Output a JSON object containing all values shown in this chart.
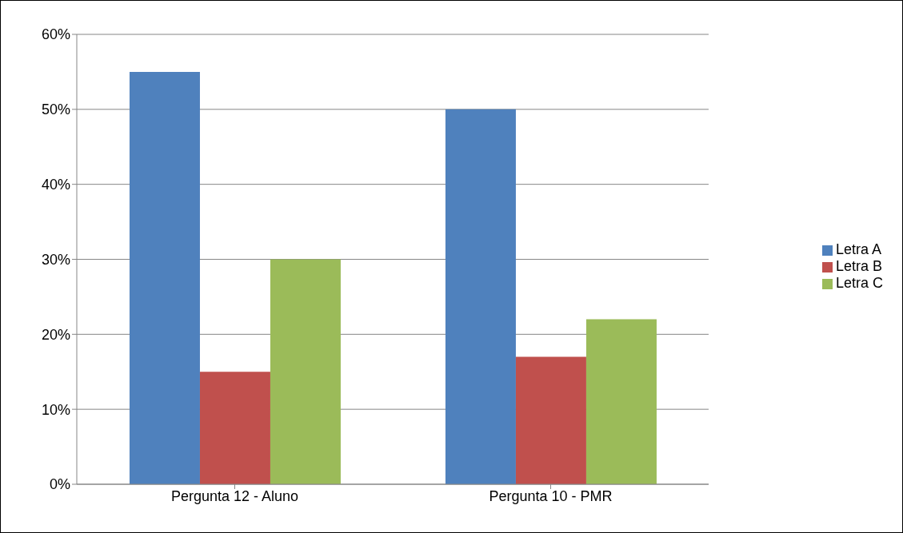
{
  "chart_data": {
    "type": "bar",
    "categories": [
      "Pergunta 12 - Aluno",
      "Pergunta 10 - PMR"
    ],
    "series": [
      {
        "name": "Letra A",
        "color": "#4f81bd",
        "values": [
          55,
          50
        ]
      },
      {
        "name": "Letra B",
        "color": "#c0504d",
        "values": [
          15,
          17
        ]
      },
      {
        "name": "Letra C",
        "color": "#9bbb59",
        "values": [
          30,
          22
        ]
      }
    ],
    "ylim": [
      0,
      60
    ],
    "yticks": [
      {
        "value": 0,
        "label": "0%"
      },
      {
        "value": 10,
        "label": "10%"
      },
      {
        "value": 20,
        "label": "20%"
      },
      {
        "value": 30,
        "label": "30%"
      },
      {
        "value": 40,
        "label": "40%"
      },
      {
        "value": 50,
        "label": "50%"
      },
      {
        "value": 60,
        "label": "60%"
      }
    ],
    "grid": "y",
    "legend": "right"
  }
}
